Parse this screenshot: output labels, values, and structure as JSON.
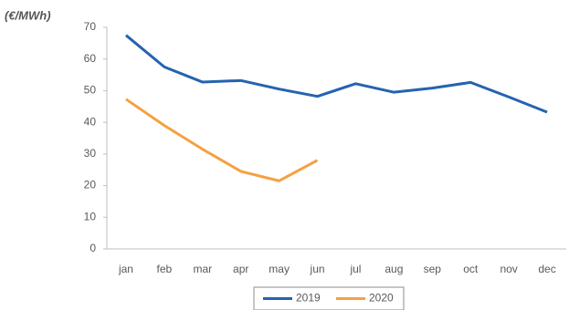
{
  "chart_data": {
    "type": "line",
    "y_label": "(€/MWh)",
    "categories": [
      "jan",
      "feb",
      "mar",
      "apr",
      "may",
      "jun",
      "jul",
      "aug",
      "sep",
      "oct",
      "nov",
      "dec"
    ],
    "series": [
      {
        "name": "2019",
        "color": "#2563b0",
        "values": [
          67.5,
          57.5,
          52.7,
          53.2,
          50.5,
          48.2,
          52.2,
          49.5,
          50.8,
          52.6,
          48,
          43.2
        ]
      },
      {
        "name": "2020",
        "color": "#f5a142",
        "values": [
          47.3,
          39,
          31.5,
          24.5,
          21.5,
          28,
          null,
          null,
          null,
          null,
          null,
          null
        ]
      }
    ],
    "ylim": [
      0,
      70
    ],
    "yticks": [
      0,
      10,
      20,
      30,
      40,
      50,
      60,
      70
    ],
    "grid": false,
    "legend": "bottom"
  }
}
